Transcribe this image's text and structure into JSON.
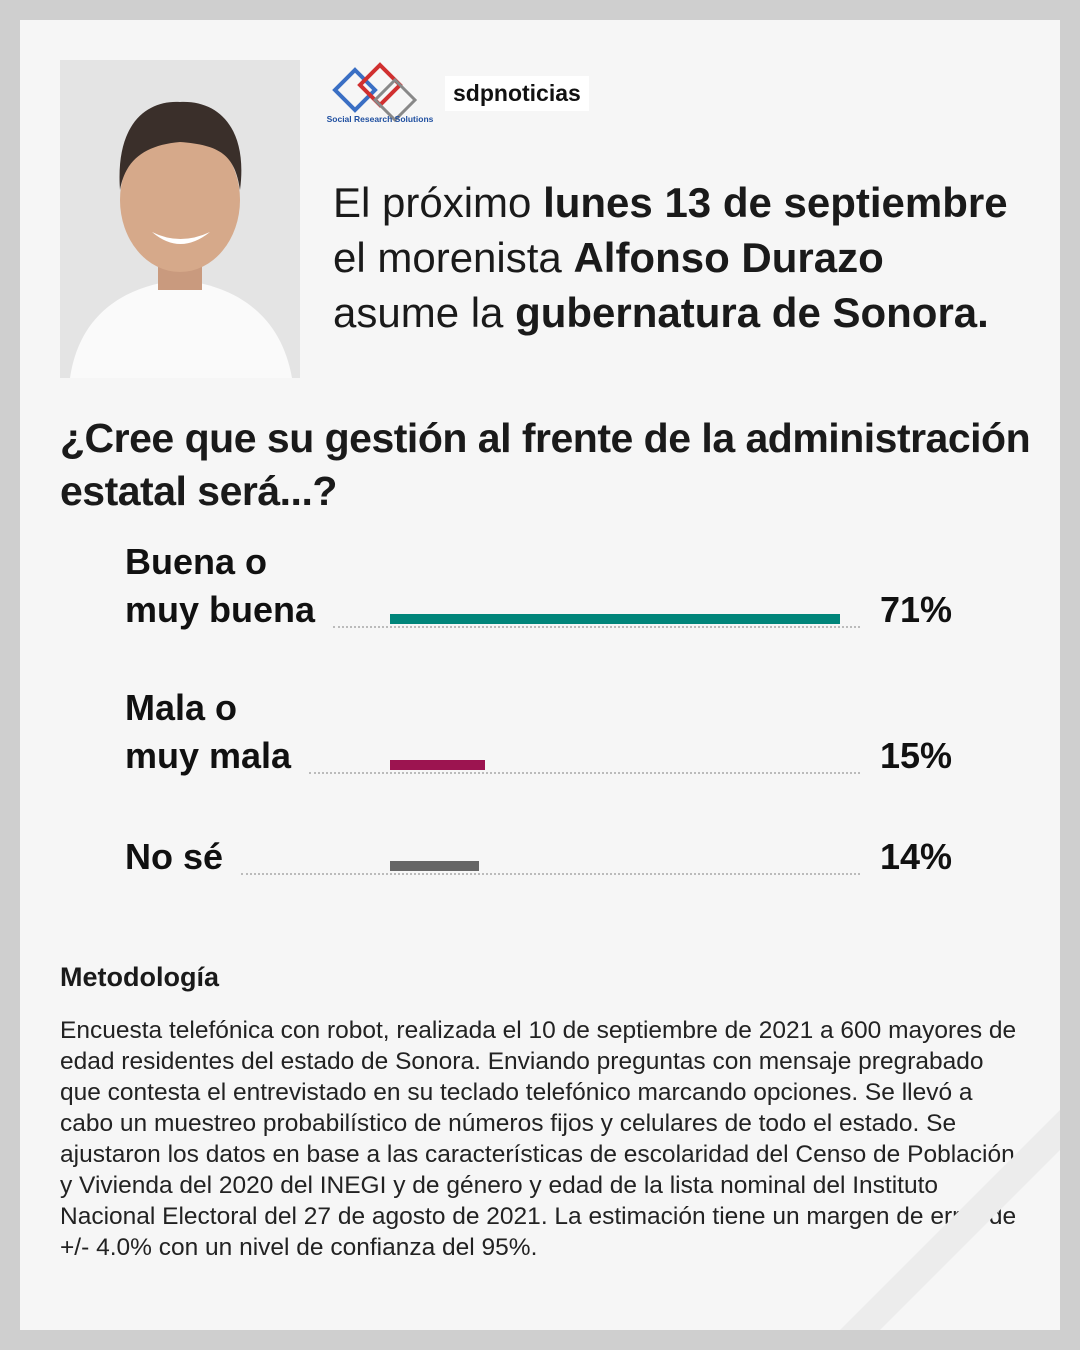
{
  "logo_text": "Social Research Solutions",
  "brand": "sdpnoticias",
  "headline": [
    "El próximo",
    "lunes 13 de septiembre",
    "el morenista",
    "Alfonso Durazo",
    "asume la",
    "gubernatura de Sonora."
  ],
  "question": "¿Cree que su gestión al frente de la administración estatal será...?",
  "chart_data": {
    "type": "hbar",
    "categories": [
      "Buena o\nmuy buena",
      "Mala o\nmuy mala",
      "No sé"
    ],
    "values": [
      71,
      15,
      14
    ],
    "value_labels": [
      "71%",
      "15%",
      "14%"
    ],
    "colors": [
      "#00857a",
      "#9c1450",
      "#666666"
    ],
    "xlim": [
      0,
      100
    ]
  },
  "methodology": {
    "title": "Metodología",
    "text": "Encuesta telefónica con robot, realizada el 10 de septiembre de 2021 a 600 mayores de edad residentes del estado de Sonora. Enviando preguntas con mensaje pregrabado que contesta el entrevistado en su teclado telefónico marcando opciones. Se llevó a cabo un muestreo probabilístico de números fijos y celulares de todo el estado. Se ajustaron los datos en base a las características de escolaridad del Censo de Población y Vivienda del 2020 del INEGI y de género y edad de la lista nominal del Instituto Nacional Electoral del 27 de agosto de 2021. La estimación tiene un margen de error de +/- 4.0% con un nivel de confianza del 95%."
  }
}
